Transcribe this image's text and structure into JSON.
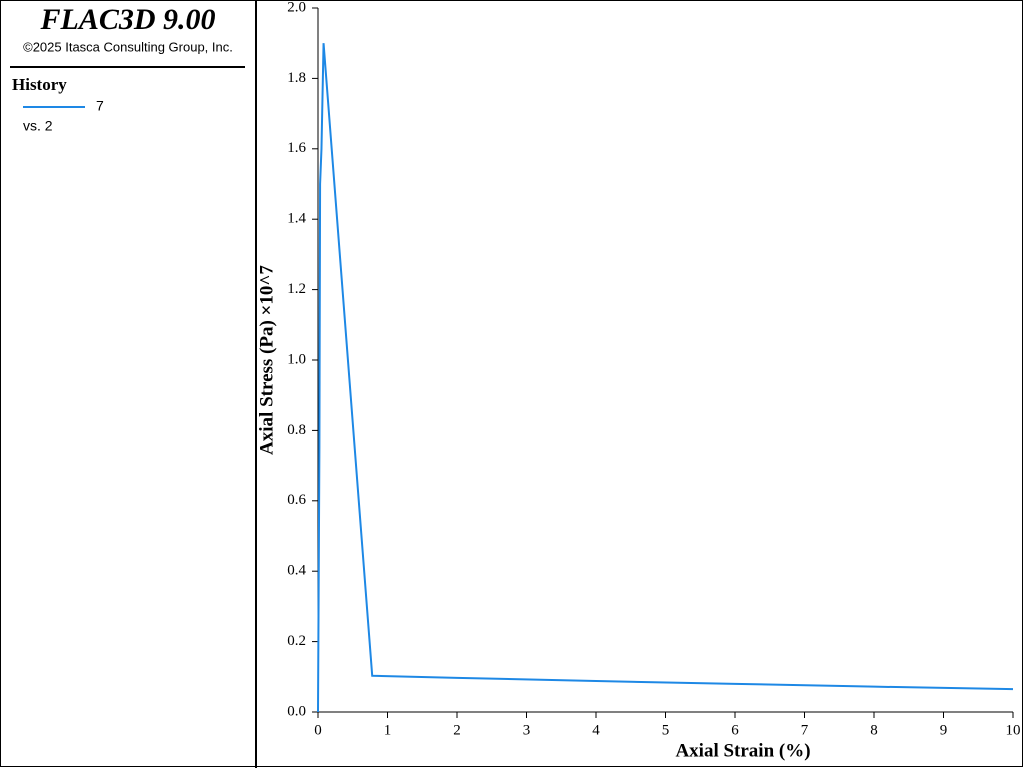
{
  "chart_data": {
    "type": "line",
    "title": "FLAC3D 9.00",
    "subtitle": "©2025 Itasca Consulting Group, Inc.",
    "legend_title": "History",
    "legend_note": "vs. 2",
    "x_label": "Axial Strain (%)",
    "y_label": "Axial Stress (Pa) ×10^7",
    "x": [
      0,
      0.02,
      0.03,
      0.05,
      0.08,
      0.78,
      2,
      4,
      6,
      8,
      10
    ],
    "series": [
      {
        "name": "7",
        "color": "#1e88e5",
        "values": [
          0,
          0.75,
          1.5,
          1.6,
          1.9,
          0.103,
          0.097,
          0.088,
          0.08,
          0.072,
          0.065
        ]
      }
    ],
    "xlim": [
      0,
      10
    ],
    "xticks": [
      0,
      1,
      2,
      3,
      4,
      5,
      6,
      7,
      8,
      9,
      10
    ],
    "ylim": [
      0,
      2
    ],
    "yticks": [
      {
        "value": 0,
        "label": "0.0"
      },
      0.2,
      0.4,
      0.6,
      0.8,
      {
        "value": 1,
        "label": "1.0"
      },
      1.2,
      1.4,
      1.6,
      1.8,
      {
        "value": 2,
        "label": "2.0"
      }
    ]
  }
}
